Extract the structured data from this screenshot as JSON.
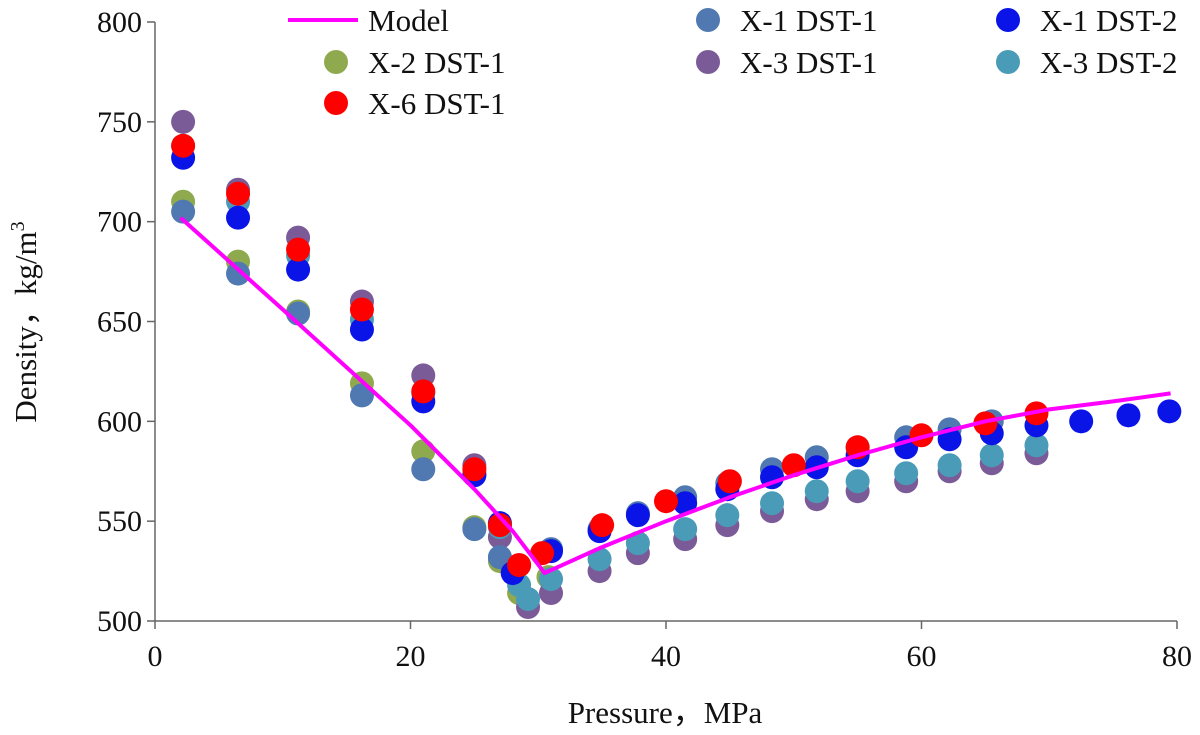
{
  "chart_data": {
    "type": "scatter",
    "title": "",
    "xlabel": "Pressure，MPa",
    "ylabel_main": "Density，kg/m",
    "ylabel_sup": "3",
    "xlim": [
      0,
      80
    ],
    "ylim": [
      500,
      800
    ],
    "xticks": [
      0,
      20,
      40,
      60,
      80
    ],
    "yticks": [
      500,
      550,
      600,
      650,
      700,
      750,
      800
    ],
    "grid": false,
    "legend_position": "top",
    "series": [
      {
        "name": "X-2 DST-1",
        "color": "#8faa4e",
        "marker": "circle",
        "points": [
          [
            2.2,
            710
          ],
          [
            6.5,
            680
          ],
          [
            11.2,
            655
          ],
          [
            16.2,
            619
          ],
          [
            21.0,
            585
          ],
          [
            25.0,
            547
          ],
          [
            27.0,
            530
          ],
          [
            28.5,
            514
          ],
          [
            30.8,
            522
          ]
        ]
      },
      {
        "name": "X-3 DST-1",
        "color": "#7b5b97",
        "marker": "circle",
        "points": [
          [
            2.2,
            750
          ],
          [
            6.5,
            716
          ],
          [
            11.2,
            692
          ],
          [
            16.2,
            660
          ],
          [
            21.0,
            623
          ],
          [
            25.0,
            578
          ],
          [
            27.0,
            542
          ],
          [
            28.5,
            528
          ],
          [
            29.2,
            507
          ],
          [
            31.0,
            514
          ],
          [
            34.8,
            525
          ],
          [
            37.8,
            534
          ],
          [
            41.5,
            541
          ],
          [
            44.8,
            548
          ],
          [
            48.3,
            555
          ],
          [
            51.8,
            561
          ],
          [
            55.0,
            565
          ],
          [
            58.8,
            570
          ],
          [
            62.2,
            575
          ],
          [
            65.5,
            579
          ],
          [
            69.0,
            584
          ]
        ]
      },
      {
        "name": "X-3 DST-2",
        "color": "#4a9bb8",
        "marker": "circle",
        "points": [
          [
            2.2,
            738
          ],
          [
            6.5,
            710
          ],
          [
            11.2,
            683
          ],
          [
            16.2,
            651
          ],
          [
            21.0,
            614
          ],
          [
            25.0,
            574
          ],
          [
            27.0,
            547
          ],
          [
            28.5,
            518
          ],
          [
            29.2,
            511
          ],
          [
            31.0,
            521
          ],
          [
            34.8,
            531
          ],
          [
            37.8,
            539
          ],
          [
            41.5,
            546
          ],
          [
            44.8,
            553
          ],
          [
            48.3,
            559
          ],
          [
            51.8,
            565
          ],
          [
            55.0,
            570
          ],
          [
            58.8,
            574
          ],
          [
            62.2,
            578
          ],
          [
            65.5,
            583
          ],
          [
            69.0,
            588
          ]
        ]
      },
      {
        "name": "X-1 DST-1",
        "color": "#4f79b0",
        "marker": "circle",
        "points": [
          [
            2.2,
            705
          ],
          [
            6.5,
            674
          ],
          [
            11.2,
            654
          ],
          [
            16.2,
            613
          ],
          [
            21.0,
            576
          ],
          [
            25.0,
            546
          ],
          [
            27.0,
            532
          ],
          [
            28.0,
            526
          ],
          [
            31.0,
            536
          ],
          [
            34.8,
            546
          ],
          [
            37.8,
            554
          ],
          [
            41.5,
            562
          ],
          [
            44.8,
            569
          ],
          [
            48.3,
            576
          ],
          [
            51.8,
            582
          ],
          [
            55.0,
            587
          ],
          [
            58.8,
            592
          ],
          [
            62.2,
            596
          ],
          [
            65.5,
            600
          ]
        ]
      },
      {
        "name": "X-1 DST-2",
        "color": "#0a14e6",
        "marker": "circle",
        "points": [
          [
            2.2,
            732
          ],
          [
            6.5,
            702
          ],
          [
            11.2,
            676
          ],
          [
            16.2,
            646
          ],
          [
            21.0,
            610
          ],
          [
            25.0,
            573
          ],
          [
            27.0,
            549
          ],
          [
            28.0,
            524
          ],
          [
            31.0,
            535
          ],
          [
            34.8,
            545
          ],
          [
            37.8,
            553
          ],
          [
            41.5,
            559
          ],
          [
            44.8,
            566
          ],
          [
            48.3,
            572
          ],
          [
            51.8,
            577
          ],
          [
            55.0,
            583
          ],
          [
            58.8,
            587
          ],
          [
            62.2,
            591
          ],
          [
            65.5,
            594
          ],
          [
            69.0,
            598
          ],
          [
            72.5,
            600
          ],
          [
            76.2,
            603
          ],
          [
            79.4,
            605
          ]
        ]
      },
      {
        "name": "X-6 DST-1",
        "color": "#ff0000",
        "marker": "circle",
        "points": [
          [
            2.2,
            738
          ],
          [
            6.5,
            714
          ],
          [
            11.2,
            686
          ],
          [
            16.2,
            656
          ],
          [
            21.0,
            615
          ],
          [
            25.0,
            576
          ],
          [
            27.0,
            548
          ],
          [
            28.5,
            528
          ],
          [
            30.3,
            534
          ],
          [
            35.0,
            548
          ],
          [
            40.0,
            560
          ],
          [
            45.0,
            570
          ],
          [
            50.0,
            578
          ],
          [
            55.0,
            587
          ],
          [
            60.0,
            593
          ],
          [
            65.0,
            599
          ],
          [
            69.0,
            604
          ]
        ]
      }
    ],
    "model": {
      "name": "Model",
      "color": "#ff00ff",
      "points": [
        [
          2.0,
          702
        ],
        [
          10.0,
          656
        ],
        [
          20.0,
          598
        ],
        [
          25.0,
          566
        ],
        [
          28.0,
          545
        ],
        [
          30.5,
          524
        ],
        [
          35.0,
          537
        ],
        [
          40.0,
          550
        ],
        [
          45.0,
          562
        ],
        [
          50.0,
          573
        ],
        [
          55.0,
          583
        ],
        [
          60.0,
          592
        ],
        [
          65.0,
          600
        ],
        [
          70.0,
          606
        ],
        [
          75.0,
          610
        ],
        [
          79.5,
          614
        ]
      ]
    },
    "legend_rows": [
      [
        "Model",
        "X-1 DST-1",
        "X-1 DST-2"
      ],
      [
        "X-2 DST-1",
        "X-3 DST-1",
        "X-3 DST-2"
      ],
      [
        "X-6 DST-1"
      ]
    ]
  }
}
